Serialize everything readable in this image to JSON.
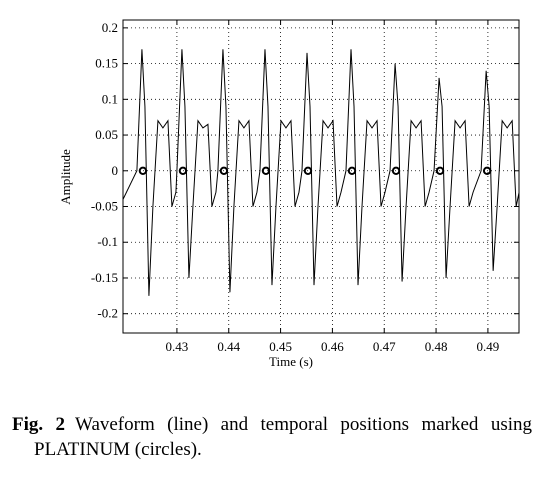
{
  "chart_data": {
    "type": "line",
    "xlabel": "Time (s)",
    "ylabel": "Amplitude",
    "xlim": [
      0.4196,
      0.496
    ],
    "xticks": [
      0.43,
      0.44,
      0.45,
      0.46,
      0.47,
      0.48,
      0.49
    ],
    "ylim": [
      -0.227,
      0.211
    ],
    "yticks": [
      -0.2,
      -0.15,
      -0.1,
      -0.05,
      0,
      0.05,
      0.1,
      0.15,
      0.2
    ],
    "grid": true,
    "x": [
      0.4196,
      0.42228,
      0.42325,
      0.42383,
      0.4246,
      0.42537,
      0.42634,
      0.4273,
      0.42827,
      0.42904,
      0.42981,
      0.43,
      0.43097,
      0.43155,
      0.43232,
      0.43309,
      0.43406,
      0.43502,
      0.43599,
      0.43676,
      0.43753,
      0.43791,
      0.43888,
      0.43946,
      0.44023,
      0.441,
      0.44197,
      0.44293,
      0.4439,
      0.44467,
      0.44544,
      0.44602,
      0.44699,
      0.44757,
      0.44834,
      0.44911,
      0.45008,
      0.45104,
      0.45201,
      0.45278,
      0.45355,
      0.45413,
      0.4551,
      0.45568,
      0.45645,
      0.45722,
      0.45819,
      0.45915,
      0.46012,
      0.46089,
      0.46166,
      0.46262,
      0.46359,
      0.46417,
      0.46494,
      0.46571,
      0.46668,
      0.46764,
      0.46861,
      0.46938,
      0.47015,
      0.47112,
      0.47209,
      0.47267,
      0.47344,
      0.47421,
      0.47518,
      0.47614,
      0.47711,
      0.47788,
      0.47865,
      0.47961,
      0.48058,
      0.48116,
      0.48193,
      0.4827,
      0.48367,
      0.48463,
      0.4856,
      0.48637,
      0.48714,
      0.48869,
      0.48966,
      0.49024,
      0.49101,
      0.49178,
      0.49275,
      0.49371,
      0.49468,
      0.49545,
      0.49602
    ],
    "series": [
      {
        "color": "#000000",
        "values": [
          -0.04,
          0,
          0.17,
          0.09,
          -0.175,
          -0.05,
          0.07,
          0.06,
          0.07,
          -0.05,
          -0.03,
          0,
          0.17,
          0.09,
          -0.15,
          -0.05,
          0.07,
          0.06,
          0.065,
          -0.05,
          -0.03,
          0,
          0.17,
          0.09,
          -0.17,
          -0.05,
          0.07,
          0.06,
          0.07,
          -0.05,
          -0.03,
          0,
          0.17,
          0.09,
          -0.16,
          -0.05,
          0.07,
          0.06,
          0.07,
          -0.05,
          -0.03,
          0,
          0.165,
          0.09,
          -0.16,
          -0.05,
          0.07,
          0.06,
          0.07,
          -0.05,
          -0.03,
          0,
          0.17,
          0.09,
          -0.16,
          -0.05,
          0.07,
          0.06,
          0.07,
          -0.05,
          -0.03,
          0,
          0.15,
          0.09,
          -0.155,
          -0.05,
          0.07,
          0.06,
          0.07,
          -0.05,
          -0.03,
          0,
          0.13,
          0.09,
          -0.15,
          -0.05,
          0.07,
          0.06,
          0.07,
          -0.05,
          -0.03,
          0,
          0.14,
          0.09,
          -0.14,
          -0.05,
          0.07,
          0.06,
          0.07,
          -0.05,
          -0.03
        ]
      }
    ],
    "markers": {
      "type": "scatter",
      "color": "#000000",
      "x": [
        0.42344,
        0.43116,
        0.43907,
        0.44718,
        0.45529,
        0.46378,
        0.47228,
        0.48077,
        0.48985
      ],
      "values": [
        0,
        0,
        0,
        0,
        0,
        0,
        0,
        0,
        0
      ]
    }
  },
  "caption_label": "Fig. 2",
  "caption": "Waveform (line) and temporal positions marked using PLATINUM (circles)."
}
